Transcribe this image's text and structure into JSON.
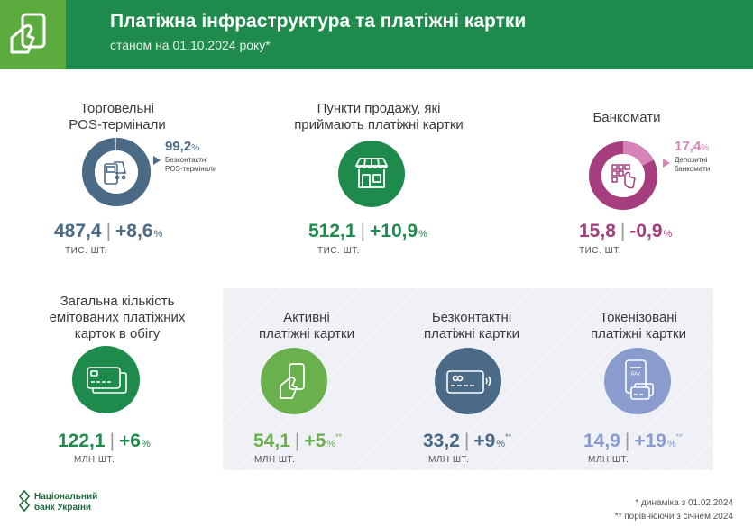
{
  "header": {
    "title": "Платіжна інфраструктура та платіжні картки",
    "subtitle": "станом на 01.10.2024 року*"
  },
  "pos": {
    "label_line1": "Торговельні",
    "label_line2": "POS-термінали",
    "value": "487,4",
    "change": "+8,6",
    "pct_sign": "%",
    "unit": "ТИС. ШТ.",
    "share": "99,2",
    "share_label_line1": "Безконтактні",
    "share_label_line2": "POS-термінали",
    "share_fraction": 0.992,
    "color": "#4b6a86"
  },
  "points": {
    "label_line1": "Пункти продажу, які",
    "label_line2": "приймають платіжні картки",
    "value": "512,1",
    "change": "+10,9",
    "pct_sign": "%",
    "unit": "ТИС. ШТ.",
    "color": "#1e8a4c"
  },
  "atm": {
    "label": "Банкомати",
    "value": "15,8",
    "change": "-0,9",
    "pct_sign": "%",
    "unit": "ТИС. ШТ.",
    "share": "17,4",
    "share_label_line1": "Депозитні",
    "share_label_line2": "банкомати",
    "share_fraction": 0.174,
    "color": "#a53d7f",
    "accent": "#d683b8"
  },
  "total_cards": {
    "label_line1": "Загальна кількість",
    "label_line2": "емітованих платіжних",
    "label_line3": "карток в обігу",
    "value": "122,1",
    "change": "+6",
    "pct_sign": "%",
    "unit": "МЛН ШТ.",
    "color": "#1e8a4c"
  },
  "active_cards": {
    "label_line1": "Активні",
    "label_line2": "платіжні картки",
    "value": "54,1",
    "change": "+5",
    "pct_sign": "%",
    "mark": "**",
    "unit": "МЛН ШТ.",
    "color": "#6ab04c"
  },
  "contactless_cards": {
    "label_line1": "Безконтактні",
    "label_line2": "платіжні картки",
    "value": "33,2",
    "change": "+9",
    "pct_sign": "%",
    "mark": "**",
    "unit": "МЛН ШТ.",
    "color": "#4b6a86"
  },
  "token_cards": {
    "label_line1": "Токенізовані",
    "label_line2": "платіжні картки",
    "value": "14,9",
    "change": "+19",
    "pct_sign": "%",
    "mark": "**",
    "unit": "МЛН ШТ.",
    "color": "#8a9cce"
  },
  "separator": "|",
  "footer": {
    "org_line1": "Національний",
    "org_line2": "банк України",
    "note1": "* динаміка з 01.02.2024",
    "note2": "** порівнюючи з січнем 2024"
  }
}
